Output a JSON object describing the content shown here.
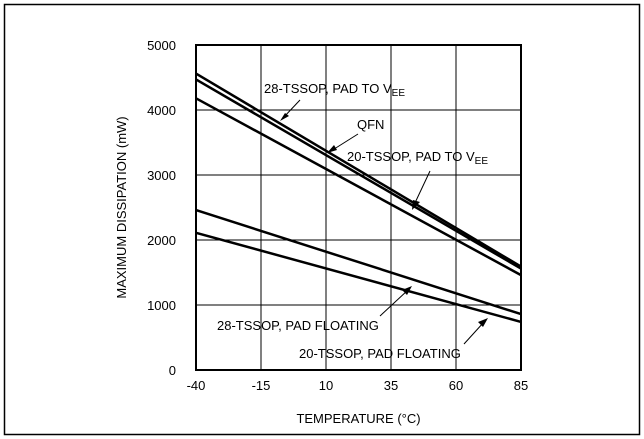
{
  "chart_data": {
    "type": "line",
    "xlabel": "TEMPERATURE (°C)",
    "ylabel": "MAXIMUM DISSIPATION (mW)",
    "xlim": [
      -40,
      85
    ],
    "ylim": [
      0,
      5000
    ],
    "xticks": [
      -40,
      -15,
      10,
      35,
      60,
      85
    ],
    "yticks": [
      0,
      1000,
      2000,
      3000,
      4000,
      5000
    ],
    "grid": true,
    "legend": "none",
    "series": [
      {
        "x": [
          -40,
          85
        ],
        "y": [
          4560,
          1590
        ]
      },
      {
        "x": [
          -40,
          85
        ],
        "y": [
          4470,
          1560
        ]
      },
      {
        "x": [
          -40,
          85
        ],
        "y": [
          4180,
          1460
        ]
      },
      {
        "x": [
          -40,
          85
        ],
        "y": [
          2460,
          860
        ]
      },
      {
        "x": [
          -40,
          85
        ],
        "y": [
          2110,
          740
        ]
      }
    ],
    "annotations": [
      {
        "main": "28-TSSOP, PAD TO V",
        "sub": "EE"
      },
      {
        "main": "QFN",
        "sub": ""
      },
      {
        "main": "20-TSSOP, PAD TO V",
        "sub": "EE"
      },
      {
        "main": "28-TSSOP, PAD FLOATING",
        "sub": ""
      },
      {
        "main": "20-TSSOP, PAD FLOATING",
        "sub": ""
      }
    ]
  }
}
